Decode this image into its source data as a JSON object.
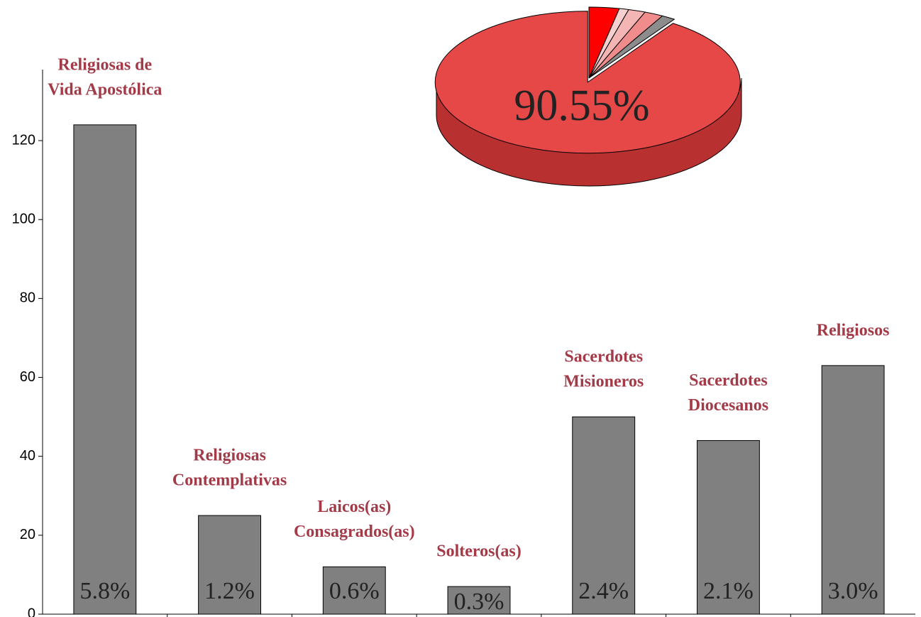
{
  "chart_data": [
    {
      "type": "bar",
      "categories": [
        [
          "Religiosas de",
          "Vida Apostólica"
        ],
        [
          "Religiosas",
          "Contemplativas"
        ],
        [
          "Laicos(as)",
          "Consagrados(as)"
        ],
        [
          "Solteros(as)"
        ],
        [
          "Sacerdotes",
          "Misioneros"
        ],
        [
          "Sacerdotes",
          "Diocesanos"
        ],
        [
          "Religiosos"
        ]
      ],
      "values": [
        124,
        25,
        12,
        7,
        50,
        44,
        63
      ],
      "percent_labels": [
        "5.8%",
        "1.2%",
        "0.6%",
        "0.3%",
        "2.4%",
        "2.1%",
        "3.0%"
      ],
      "color": "#808080",
      "label_color": "#a33a48",
      "ylim": [
        0,
        138
      ],
      "yticks": [
        0,
        20,
        40,
        60,
        80,
        100,
        120
      ]
    },
    {
      "type": "pie",
      "values": [
        3.2,
        1.0,
        1.8,
        2.0,
        1.45,
        90.55
      ],
      "colors": [
        "#ff0000",
        "#f6d0d0",
        "#f4b5b5",
        "#f08c8c",
        "#8c8c8c",
        "#e64848"
      ],
      "label": "90.55%"
    }
  ]
}
